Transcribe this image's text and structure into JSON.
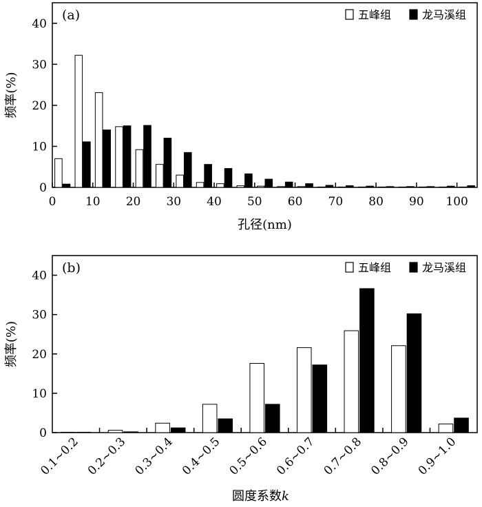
{
  "chart_data": [
    {
      "type": "bar",
      "panel_label": "(a)",
      "xlabel": "孔径(nm)",
      "ylabel": "频率(%)",
      "xlim": [
        0,
        105
      ],
      "ylim": [
        0,
        45
      ],
      "xticks": [
        0,
        10,
        20,
        30,
        40,
        50,
        60,
        70,
        80,
        90,
        100
      ],
      "yticks": [
        0,
        10,
        20,
        30,
        40
      ],
      "legend_position": "top-right",
      "x": [
        2.5,
        7.5,
        12.5,
        17.5,
        22.5,
        27.5,
        32.5,
        37.5,
        42.5,
        47.5,
        52.5,
        57.5,
        62.5,
        67.5,
        72.5,
        77.5,
        82.5,
        87.5,
        92.5,
        97.5,
        102.5
      ],
      "series": [
        {
          "name": "五峰组",
          "fill": "#ffffff",
          "values": [
            7.0,
            32.2,
            23.1,
            14.8,
            9.2,
            5.6,
            3.0,
            1.2,
            0.9,
            0.4,
            0.3,
            0.2,
            0.2,
            0.1,
            0.1,
            0.1,
            0.1,
            0.1,
            0.1,
            0.1,
            0.1
          ]
        },
        {
          "name": "龙马溪组",
          "fill": "#000000",
          "values": [
            0.8,
            11.1,
            14.0,
            15.0,
            15.1,
            12.0,
            8.5,
            5.6,
            4.6,
            3.3,
            2.0,
            1.3,
            0.9,
            0.5,
            0.4,
            0.3,
            0.2,
            0.2,
            0.2,
            0.3,
            0.4
          ]
        }
      ]
    },
    {
      "type": "bar",
      "panel_label": "(b)",
      "xlabel": "圆度系数",
      "xlabel_italic": "k",
      "ylabel": "频率(%)",
      "ylim": [
        0,
        45
      ],
      "yticks": [
        0,
        10,
        20,
        30,
        40
      ],
      "legend_position": "top-right",
      "categories": [
        "0.1~0.2",
        "0.2~0.3",
        "0.3~0.4",
        "0.4~0.5",
        "0.5~0.6",
        "0.6~0.7",
        "0.7~0.8",
        "0.8~0.9",
        "0.9~1.0"
      ],
      "series": [
        {
          "name": "五峰组",
          "fill": "#ffffff",
          "values": [
            0.1,
            0.6,
            2.4,
            7.2,
            17.6,
            21.6,
            25.9,
            22.1,
            2.2
          ]
        },
        {
          "name": "龙马溪组",
          "fill": "#000000",
          "values": [
            0.1,
            0.2,
            1.2,
            3.5,
            7.2,
            17.2,
            36.6,
            30.2,
            3.7
          ]
        }
      ]
    }
  ]
}
